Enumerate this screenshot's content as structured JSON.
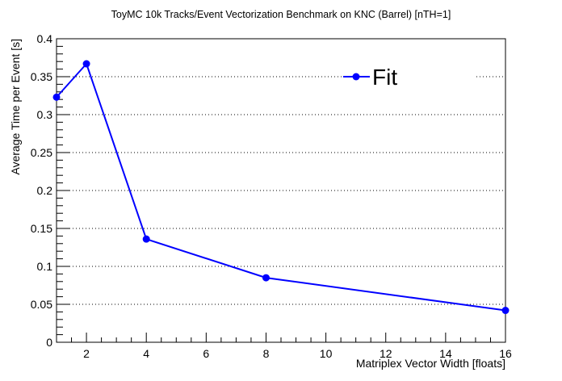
{
  "chart_data": {
    "type": "line",
    "title": "ToyMC 10k Tracks/Event Vectorization Benchmark on KNC (Barrel) [nTH=1]",
    "xlabel": "Matriplex Vector Width [floats]",
    "ylabel": "Average Time per Event [s]",
    "xlim": [
      1,
      16
    ],
    "ylim": [
      0,
      0.4
    ],
    "x_ticks": [
      2,
      4,
      6,
      8,
      10,
      12,
      14,
      16
    ],
    "y_ticks": [
      0,
      0.05,
      0.1,
      0.15,
      0.2,
      0.25,
      0.3,
      0.35,
      0.4
    ],
    "x_tick_labels": [
      "2",
      "4",
      "6",
      "8",
      "10",
      "12",
      "14",
      "16"
    ],
    "y_tick_labels": [
      "0",
      "0.05",
      "0.1",
      "0.15",
      "0.2",
      "0.25",
      "0.3",
      "0.35",
      "0.4"
    ],
    "grid": "horizontal dotted",
    "legend_position": "top-right",
    "series": [
      {
        "name": "Fit",
        "color": "#0000ff",
        "x": [
          1,
          2,
          4,
          8,
          16
        ],
        "y": [
          0.323,
          0.367,
          0.136,
          0.085,
          0.042
        ]
      }
    ]
  }
}
